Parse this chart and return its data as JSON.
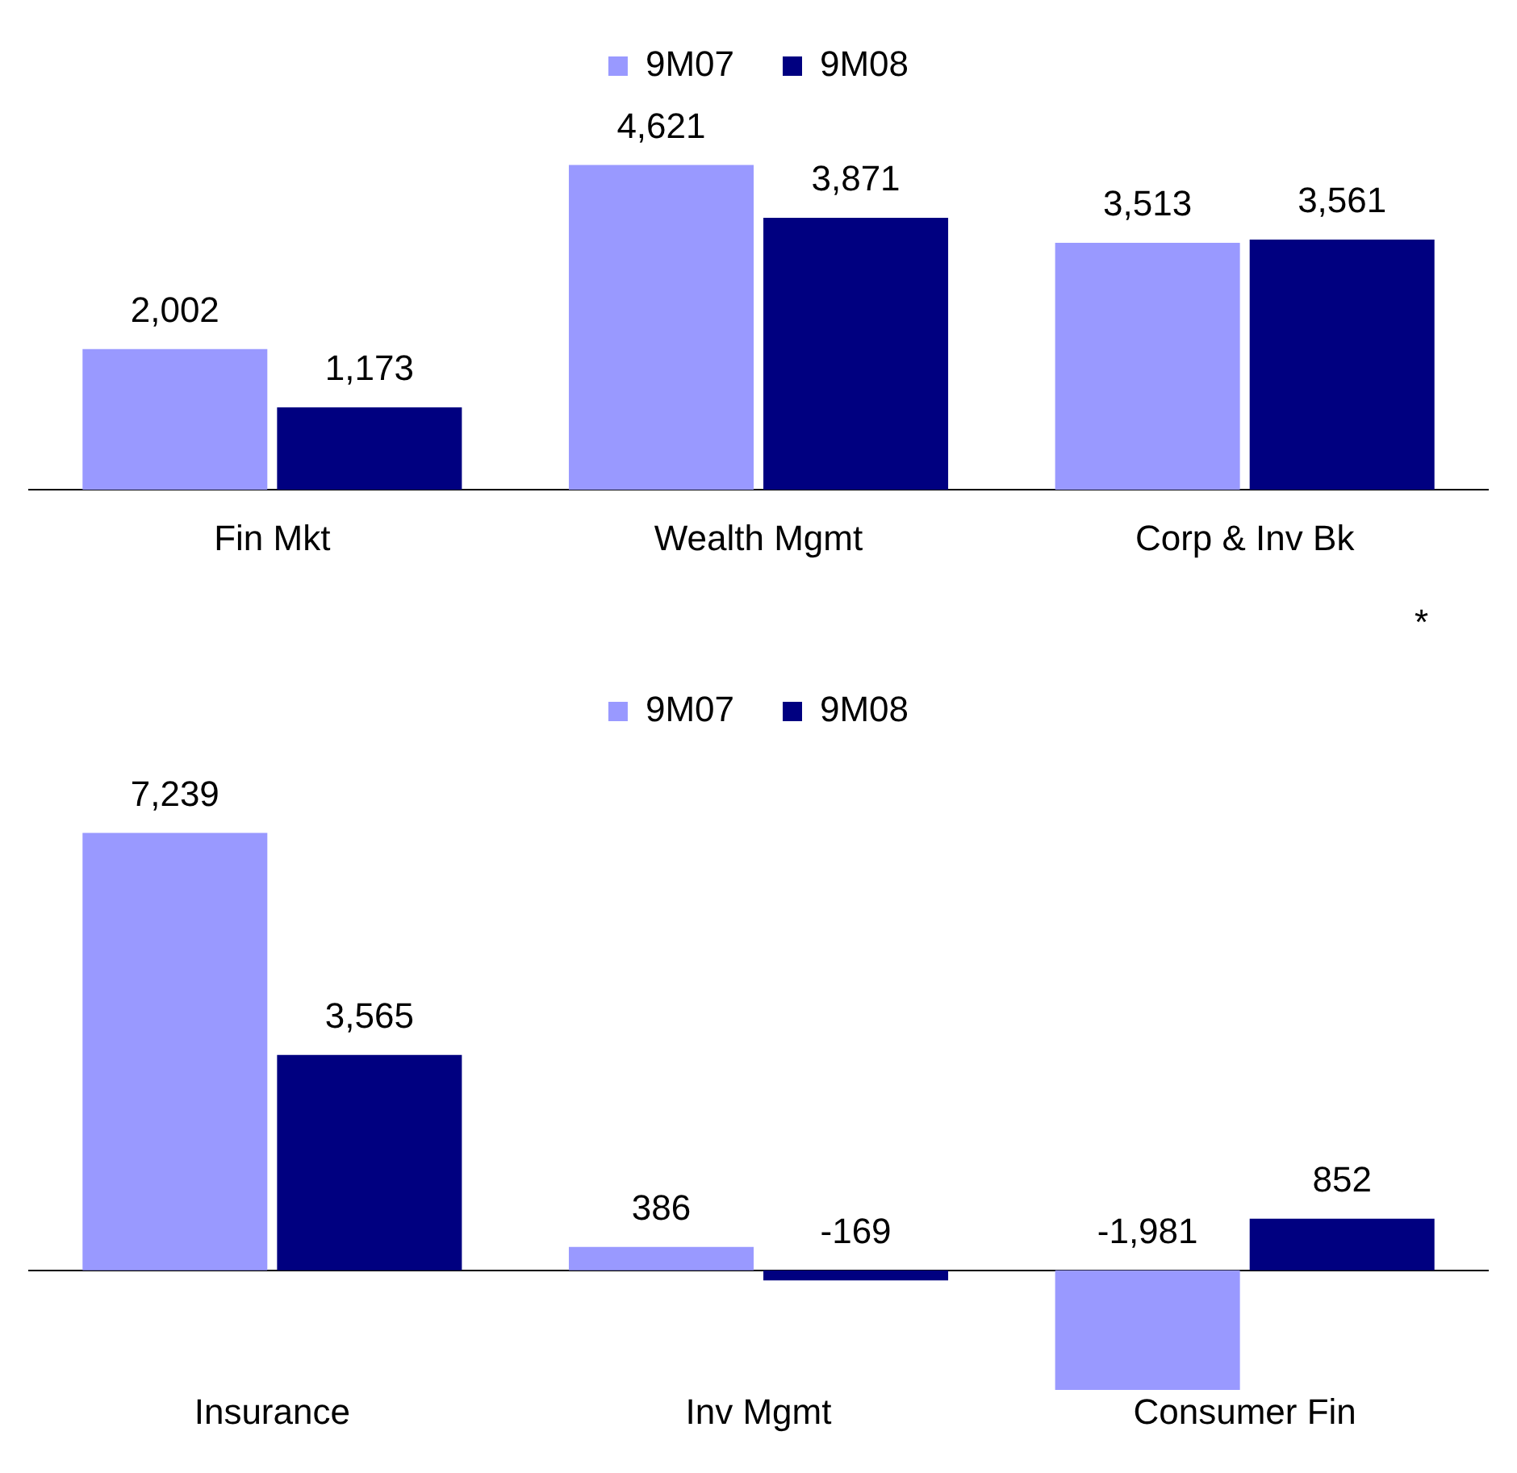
{
  "chart_data": [
    {
      "type": "bar",
      "categories": [
        "Fin Mkt",
        "Wealth Mgmt",
        "Corp & Inv Bk"
      ],
      "series": [
        {
          "name": "9M07",
          "color": "#9999ff",
          "values": [
            2002,
            4621,
            3513
          ],
          "value_labels": [
            "2,002",
            "4,621",
            "3,513"
          ]
        },
        {
          "name": "9M08",
          "color": "#000080",
          "values": [
            1173,
            3871,
            3561
          ],
          "value_labels": [
            "1,173",
            "3,871",
            "3,561"
          ]
        }
      ],
      "legend": "top",
      "grid": false,
      "annotations": [
        "*"
      ]
    },
    {
      "type": "bar",
      "categories": [
        "Insurance",
        "Inv Mgmt",
        "Consumer Fin"
      ],
      "series": [
        {
          "name": "9M07",
          "color": "#9999ff",
          "values": [
            7239,
            386,
            -1981
          ],
          "value_labels": [
            "7,239",
            "386",
            "-1,981"
          ]
        },
        {
          "name": "9M08",
          "color": "#000080",
          "values": [
            3565,
            -169,
            852
          ],
          "value_labels": [
            "3,565",
            "-169",
            "852"
          ]
        }
      ],
      "legend": "top",
      "grid": false
    }
  ]
}
